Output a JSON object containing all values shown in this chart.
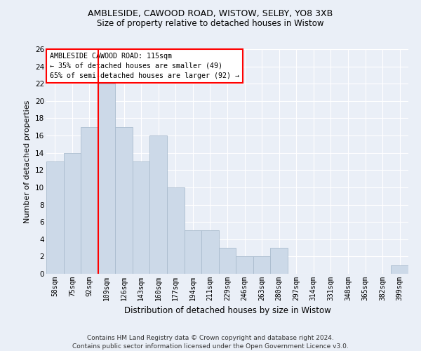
{
  "title1": "AMBLESIDE, CAWOOD ROAD, WISTOW, SELBY, YO8 3XB",
  "title2": "Size of property relative to detached houses in Wistow",
  "xlabel": "Distribution of detached houses by size in Wistow",
  "ylabel": "Number of detached properties",
  "footer1": "Contains HM Land Registry data © Crown copyright and database right 2024.",
  "footer2": "Contains public sector information licensed under the Open Government Licence v3.0.",
  "bin_labels": [
    "58sqm",
    "75sqm",
    "92sqm",
    "109sqm",
    "126sqm",
    "143sqm",
    "160sqm",
    "177sqm",
    "194sqm",
    "211sqm",
    "229sqm",
    "246sqm",
    "263sqm",
    "280sqm",
    "297sqm",
    "314sqm",
    "331sqm",
    "348sqm",
    "365sqm",
    "382sqm",
    "399sqm"
  ],
  "bar_values": [
    13,
    14,
    17,
    22,
    17,
    13,
    16,
    10,
    5,
    5,
    3,
    2,
    2,
    3,
    0,
    0,
    0,
    0,
    0,
    0,
    1
  ],
  "bar_color": "#ccd9e8",
  "bar_edge_color": "#aabcce",
  "vline_x_index": 3,
  "vline_color": "red",
  "annotation_title": "AMBLESIDE CAWOOD ROAD: 115sqm",
  "annotation_line2": "← 35% of detached houses are smaller (49)",
  "annotation_line3": "65% of semi-detached houses are larger (92) →",
  "annotation_box_color": "white",
  "annotation_box_edge": "red",
  "ylim": [
    0,
    26
  ],
  "yticks": [
    0,
    2,
    4,
    6,
    8,
    10,
    12,
    14,
    16,
    18,
    20,
    22,
    24,
    26
  ],
  "bg_color": "#eaeff7",
  "plot_bg_color": "#eaeff7",
  "grid_color": "#ffffff",
  "title1_fontsize": 9,
  "title2_fontsize": 8.5,
  "ylabel_fontsize": 8,
  "xlabel_fontsize": 8.5,
  "tick_fontsize": 7,
  "ytick_fontsize": 7.5,
  "footer_fontsize": 6.5
}
